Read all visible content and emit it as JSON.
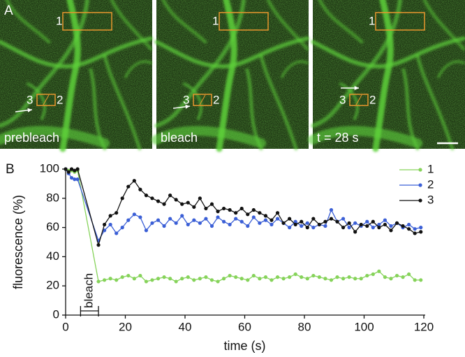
{
  "figure": {
    "panel_a_label": "A",
    "panel_b_label": "B",
    "captions": [
      "prebleach",
      "bleach",
      "t = 28 s"
    ],
    "roi_labels": [
      "1",
      "2",
      "3"
    ]
  },
  "chart_data": {
    "type": "line",
    "x_label": "time (s)",
    "y_label": "fluorescence (%)",
    "x": [
      0,
      1,
      2,
      3,
      4,
      11,
      13,
      15,
      17,
      19,
      21,
      23,
      25,
      27,
      29,
      31,
      33,
      35,
      37,
      39,
      41,
      43,
      45,
      47,
      49,
      51,
      53,
      55,
      57,
      59,
      61,
      63,
      65,
      67,
      69,
      71,
      73,
      75,
      77,
      79,
      81,
      83,
      85,
      87,
      89,
      91,
      93,
      95,
      97,
      99,
      101,
      103,
      105,
      107,
      109,
      111,
      113,
      115,
      117,
      119
    ],
    "series": [
      {
        "name": "1",
        "color": "#86d35a",
        "values": [
          100,
          99,
          99,
          98,
          99,
          23,
          24,
          25,
          24,
          26,
          27,
          25,
          27,
          23,
          24,
          25,
          26,
          25,
          23,
          25,
          26,
          24,
          25,
          26,
          24,
          23,
          25,
          27,
          26,
          25,
          24,
          27,
          25,
          26,
          24,
          26,
          25,
          26,
          28,
          26,
          25,
          27,
          26,
          25,
          24,
          26,
          25,
          26,
          25,
          25,
          27,
          28,
          30,
          26,
          25,
          27,
          26,
          28,
          24,
          24
        ]
      },
      {
        "name": "2",
        "color": "#3b5fd6",
        "values": [
          100,
          97,
          94,
          93,
          93,
          51,
          58,
          62,
          56,
          60,
          65,
          69,
          67,
          58,
          63,
          65,
          61,
          66,
          63,
          68,
          62,
          65,
          63,
          66,
          61,
          67,
          64,
          62,
          66,
          64,
          61,
          67,
          63,
          65,
          62,
          66,
          63,
          60,
          64,
          61,
          63,
          60,
          62,
          61,
          72,
          64,
          66,
          60,
          63,
          61,
          64,
          60,
          62,
          65,
          61,
          63,
          60,
          62,
          59,
          60
        ]
      },
      {
        "name": "3",
        "color": "#111111",
        "values": [
          100,
          98,
          100,
          99,
          100,
          48,
          62,
          68,
          70,
          80,
          88,
          92,
          86,
          82,
          80,
          78,
          76,
          82,
          79,
          76,
          77,
          74,
          80,
          73,
          76,
          71,
          73,
          72,
          70,
          73,
          69,
          72,
          70,
          68,
          65,
          70,
          63,
          66,
          62,
          64,
          60,
          66,
          62,
          64,
          66,
          64,
          60,
          63,
          57,
          62,
          61,
          64,
          60,
          62,
          58,
          63,
          61,
          59,
          56,
          57
        ]
      }
    ],
    "xlim": [
      0,
      120
    ],
    "xticks": [
      0,
      20,
      40,
      60,
      80,
      100,
      120
    ],
    "ylim": [
      0,
      100
    ],
    "yticks": [
      0,
      20,
      40,
      60,
      80,
      100
    ],
    "grid": false,
    "legend": "upper right",
    "annotation": {
      "text": "bleach",
      "start": 5,
      "end": 11
    }
  }
}
